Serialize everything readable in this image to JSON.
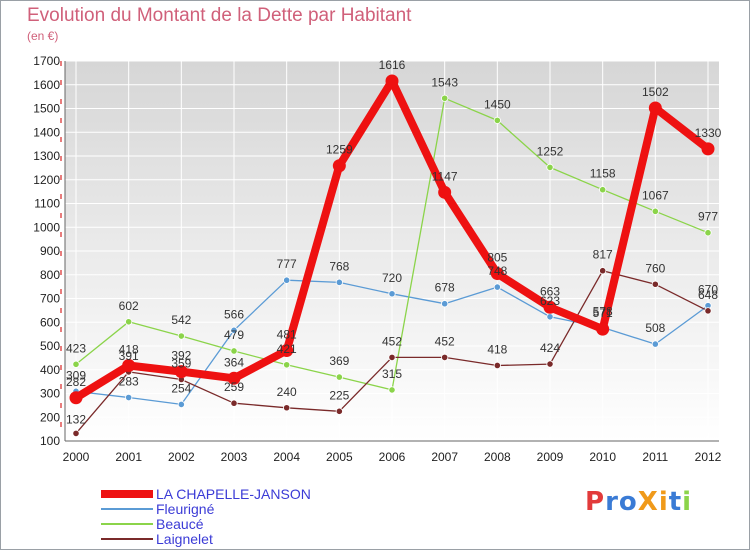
{
  "title": "Evolution du Montant de la Dette par Habitant",
  "unit": "(en €)",
  "logo_text": "ProXiti",
  "colors": {
    "background_top": "#d6d6d6",
    "background_bottom": "#ffffff",
    "grid": "#ffffff",
    "axis_text": "#222222",
    "title": "#d0607a"
  },
  "chart_data": {
    "type": "line",
    "title": "Evolution du Montant de la Dette par Habitant",
    "ylabel": "(en €)",
    "xlabel": "",
    "x": [
      "2000",
      "2001",
      "2002",
      "2003",
      "2004",
      "2005",
      "2006",
      "2007",
      "2008",
      "2009",
      "2010",
      "2011",
      "2012"
    ],
    "ylim": [
      100,
      1700
    ],
    "yticks": [
      100,
      200,
      300,
      400,
      500,
      600,
      700,
      800,
      900,
      1000,
      1100,
      1200,
      1300,
      1400,
      1500,
      1600,
      1700
    ],
    "grid": true,
    "legend": "bottom-left",
    "series": [
      {
        "name": "LA CHAPELLE-JANSON",
        "color": "#ee1111",
        "values": [
          282,
          418,
          392,
          364,
          481,
          1259,
          1616,
          1147,
          805,
          663,
          571,
          1502,
          1330
        ]
      },
      {
        "name": "Fleurigné",
        "color": "#5b9bd5",
        "values": [
          309,
          283,
          254,
          566,
          777,
          768,
          720,
          678,
          748,
          623,
          578,
          508,
          670
        ]
      },
      {
        "name": "Beaucé",
        "color": "#8bd44a",
        "values": [
          423,
          602,
          542,
          479,
          421,
          369,
          315,
          1543,
          1450,
          1252,
          1158,
          1067,
          977
        ]
      },
      {
        "name": "Laignelet",
        "color": "#7a2a2a",
        "values": [
          132,
          391,
          359,
          259,
          240,
          225,
          452,
          452,
          418,
          424,
          817,
          760,
          648
        ]
      }
    ]
  }
}
